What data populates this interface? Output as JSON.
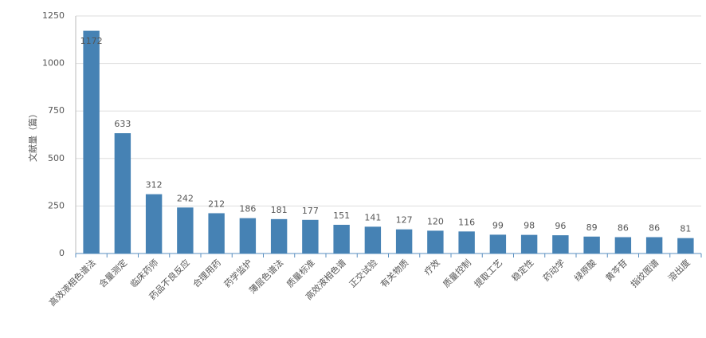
{
  "chart_data": {
    "type": "bar",
    "y_label": "文献量（篇）",
    "categories": [
      "高效液相色谱法",
      "含量测定",
      "临床药师",
      "药品不良反应",
      "合理用药",
      "药学监护",
      "薄层色谱法",
      "质量标准",
      "高效液相色谱",
      "正交试验",
      "有关物质",
      "疗效",
      "质量控制",
      "提取工艺",
      "稳定性",
      "药动学",
      "绿原酸",
      "黄芩苷",
      "指纹图谱",
      "溶出度"
    ],
    "values": [
      1172,
      633,
      312,
      242,
      212,
      186,
      181,
      177,
      151,
      141,
      127,
      120,
      116,
      99,
      98,
      96,
      89,
      86,
      86,
      81
    ],
    "color": "#4682b4",
    "ylim": [
      0,
      1250
    ],
    "yticks": [
      0,
      250,
      500,
      750,
      1000,
      1250
    ],
    "grid": true
  }
}
